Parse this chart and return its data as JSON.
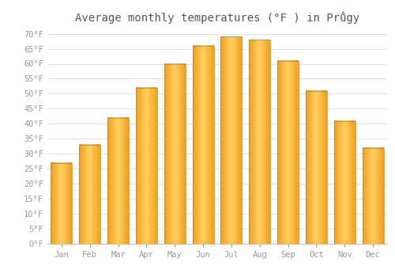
{
  "title": "Average monthly temperatures (°F ) in Průgy",
  "months": [
    "Jan",
    "Feb",
    "Mar",
    "Apr",
    "May",
    "Jun",
    "Jul",
    "Aug",
    "Sep",
    "Oct",
    "Nov",
    "Dec"
  ],
  "values": [
    27,
    33,
    42,
    52,
    60,
    66,
    69,
    68,
    61,
    51,
    41,
    32
  ],
  "bar_color_center": "#FFD060",
  "bar_color_edge": "#F0A020",
  "background_color": "#FFFFFF",
  "grid_color": "#DDDDDD",
  "yticks": [
    0,
    5,
    10,
    15,
    20,
    25,
    30,
    35,
    40,
    45,
    50,
    55,
    60,
    65,
    70
  ],
  "ylim": [
    0,
    72
  ],
  "title_fontsize": 10,
  "tick_fontsize": 7.5,
  "font_color": "#999999",
  "title_color": "#555555"
}
